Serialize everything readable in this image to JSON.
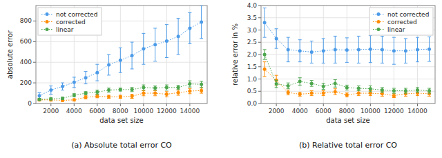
{
  "chart_data": [
    {
      "type": "line",
      "marker": "circle",
      "line_style": "dotted",
      "grid": true,
      "legend": "upper left",
      "caption": "(a) Absolute total error CO",
      "x_label": "data set size",
      "y_label": "absolute error",
      "x": [
        1000,
        2000,
        3000,
        4000,
        5000,
        6000,
        7000,
        8000,
        9000,
        10000,
        11000,
        12000,
        13000,
        14000,
        15000
      ],
      "xlim": [
        700,
        15500
      ],
      "xticks": [
        2000,
        4000,
        6000,
        8000,
        10000,
        12000,
        14000
      ],
      "ylim": [
        0,
        950
      ],
      "yticks": [
        0,
        200,
        400,
        600,
        800
      ],
      "series": [
        {
          "name": "not corrected",
          "color": "#4C9BE8",
          "values": [
            75,
            130,
            165,
            205,
            250,
            300,
            375,
            420,
            465,
            530,
            570,
            605,
            650,
            730,
            790
          ],
          "errors": [
            30,
            40,
            35,
            50,
            60,
            80,
            100,
            120,
            130,
            150,
            160,
            160,
            175,
            150,
            160
          ]
        },
        {
          "name": "corrected",
          "color": "#FF8C00",
          "values": [
            35,
            35,
            30,
            35,
            60,
            70,
            65,
            65,
            70,
            100,
            100,
            90,
            105,
            120,
            125
          ],
          "errors": [
            8,
            10,
            10,
            10,
            15,
            15,
            15,
            15,
            20,
            25,
            25,
            25,
            25,
            25,
            25
          ]
        },
        {
          "name": "linear",
          "color": "#4CA64C",
          "values": [
            40,
            45,
            50,
            80,
            100,
            110,
            130,
            135,
            135,
            155,
            150,
            155,
            155,
            190,
            185
          ],
          "errors": [
            8,
            10,
            12,
            15,
            15,
            20,
            20,
            15,
            20,
            25,
            20,
            25,
            20,
            30,
            30
          ]
        }
      ]
    },
    {
      "type": "line",
      "marker": "circle",
      "line_style": "dotted",
      "grid": true,
      "legend": "upper right",
      "caption": "(b) Relative total error CO",
      "x_label": "data set size",
      "y_label": "relative error in %",
      "x": [
        1000,
        2000,
        3000,
        4000,
        5000,
        6000,
        7000,
        8000,
        9000,
        10000,
        11000,
        12000,
        13000,
        14000,
        15000
      ],
      "xlim": [
        700,
        15500
      ],
      "xticks": [
        2000,
        4000,
        6000,
        8000,
        10000,
        12000,
        14000
      ],
      "ylim": [
        0,
        4.0
      ],
      "yticks": [
        {
          "value": 0.0,
          "label": "0.0"
        },
        0.5,
        {
          "value": 1.0,
          "label": "1.0"
        },
        1.5,
        {
          "value": 2.0,
          "label": "2.0"
        },
        2.5,
        {
          "value": 3.0,
          "label": "3.0"
        },
        3.5,
        {
          "value": 4.0,
          "label": "4.0"
        }
      ],
      "series": [
        {
          "name": "not corrected",
          "color": "#4C9BE8",
          "values": [
            3.3,
            2.65,
            2.2,
            2.15,
            2.1,
            2.15,
            2.2,
            2.18,
            2.2,
            2.22,
            2.2,
            2.15,
            2.15,
            2.2,
            2.22
          ],
          "errors": [
            0.6,
            0.4,
            0.5,
            0.45,
            0.45,
            0.5,
            0.55,
            0.5,
            0.55,
            0.55,
            0.55,
            0.55,
            0.5,
            0.5,
            0.5
          ]
        },
        {
          "name": "corrected",
          "color": "#FF8C00",
          "values": [
            1.4,
            0.95,
            0.45,
            0.38,
            0.42,
            0.42,
            0.48,
            0.35,
            0.42,
            0.42,
            0.4,
            0.32,
            0.4,
            0.42,
            0.4
          ],
          "errors": [
            0.3,
            0.2,
            0.1,
            0.08,
            0.1,
            0.1,
            0.12,
            0.08,
            0.1,
            0.1,
            0.1,
            0.08,
            0.1,
            0.1,
            0.1
          ]
        },
        {
          "name": "linear",
          "color": "#4CA64C",
          "values": [
            2.0,
            0.8,
            0.72,
            0.9,
            0.82,
            0.7,
            0.82,
            0.65,
            0.62,
            0.6,
            0.55,
            0.52,
            0.52,
            0.55,
            0.52
          ],
          "errors": [
            0.2,
            0.15,
            0.12,
            0.15,
            0.12,
            0.12,
            0.15,
            0.1,
            0.1,
            0.12,
            0.1,
            0.1,
            0.1,
            0.1,
            0.1
          ]
        }
      ]
    }
  ]
}
